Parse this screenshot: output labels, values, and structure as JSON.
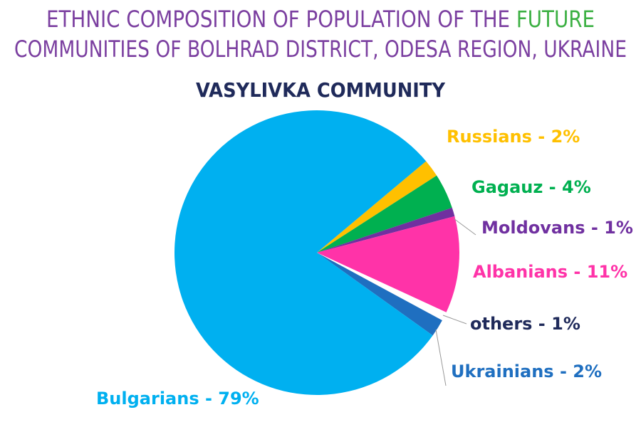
{
  "chart_data": {
    "type": "pie",
    "title": [
      "ETHNIC COMPOSITION OF POPULATION OF THE",
      "FUTURE",
      "COMMUNITIES OF BOLHRAD DISTRICT, ODESA REGION, UKRAINE"
    ],
    "title_colors": [
      "#7b3fa0",
      "#3cb043",
      "#7b3fa0"
    ],
    "subtitle": "VASYLIVKA COMMUNITY",
    "subtitle_color": "#1f2a5a",
    "values": [
      2,
      4,
      1,
      11,
      1,
      2,
      79
    ],
    "value_labels": [
      "Russians - 2%",
      "Gagauz - 4%",
      "Moldovans - 1%",
      "Albanians - 11%",
      "others - 1%",
      "Ukrainians - 2%",
      "Bulgarians - 79%"
    ],
    "colors": [
      "#ffc000",
      "#00b050",
      "#7030a0",
      "#ff33a8",
      "#ffffff",
      "#1f6fc0",
      "#00b0f0"
    ],
    "label_colors": [
      "#ffc000",
      "#00b050",
      "#7030a0",
      "#ff33a8",
      "#1f2a5a",
      "#1f6fc0",
      "#00b0f0"
    ]
  }
}
